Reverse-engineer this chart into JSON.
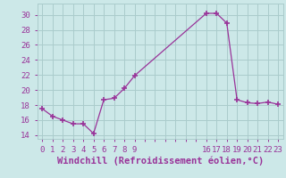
{
  "x": [
    0,
    1,
    2,
    3,
    4,
    5,
    6,
    7,
    8,
    9,
    16,
    17,
    18,
    19,
    20,
    21,
    22,
    23
  ],
  "y": [
    17.5,
    16.5,
    16.0,
    15.5,
    15.5,
    14.2,
    18.7,
    18.9,
    20.2,
    21.9,
    30.2,
    30.2,
    28.9,
    18.7,
    18.3,
    18.2,
    18.4,
    18.1
  ],
  "line_color": "#993399",
  "marker_color": "#993399",
  "bg_color": "#cce8e8",
  "grid_color": "#aacccc",
  "xlabel": "Windchill (Refroidissement éolien,°C)",
  "xlim": [
    -0.5,
    23.5
  ],
  "ylim": [
    13.5,
    31.5
  ],
  "yticks": [
    14,
    16,
    18,
    20,
    22,
    24,
    26,
    28,
    30
  ],
  "xtick_positions": [
    0,
    1,
    2,
    3,
    4,
    5,
    6,
    7,
    8,
    9,
    10,
    11,
    12,
    13,
    14,
    15,
    16,
    17,
    18,
    19,
    20,
    21,
    22,
    23
  ],
  "xtick_labels": [
    "0",
    "1",
    "2",
    "3",
    "4",
    "5",
    "6",
    "7",
    "8",
    "9",
    "",
    "",
    "",
    "",
    "",
    "",
    "16",
    "17",
    "18",
    "19",
    "20",
    "21",
    "22",
    "23"
  ],
  "tick_color": "#993399",
  "label_color": "#993399",
  "tick_fontsize": 6.5,
  "xlabel_fontsize": 7.5
}
